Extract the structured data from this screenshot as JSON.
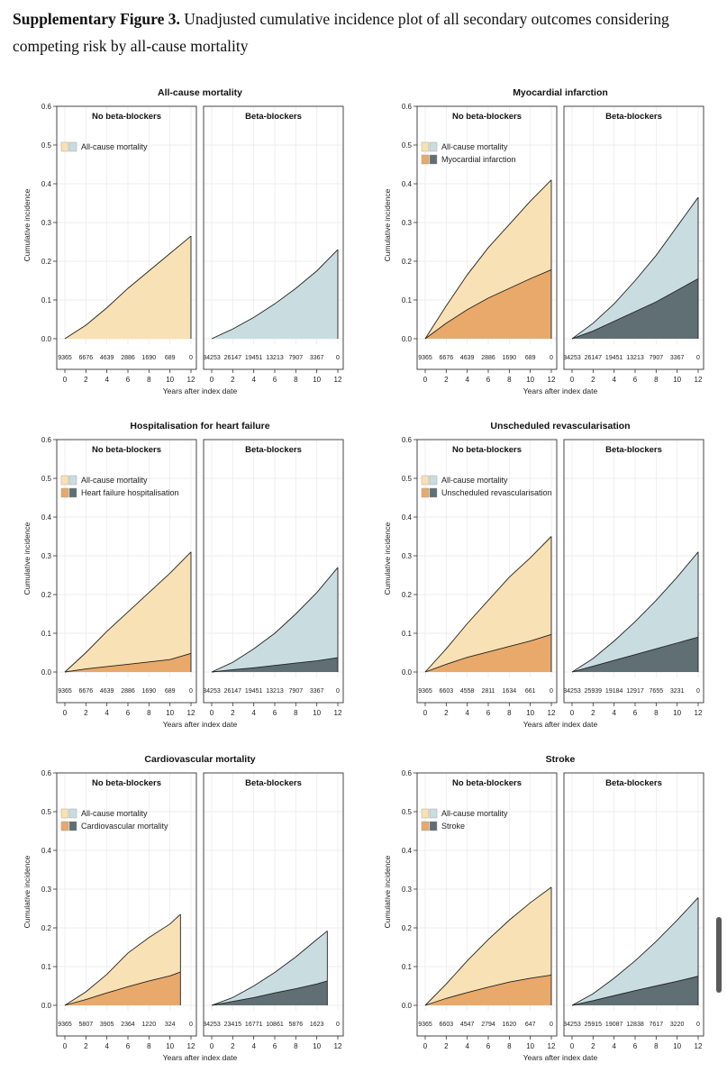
{
  "caption": {
    "label": "Supplementary Figure 3.",
    "text": " Unadjusted cumulative incidence plot of all secondary outcomes considering competing risk by all-cause mortality"
  },
  "colors": {
    "mortality_no": "#f8e1b4",
    "mortality_yes": "#c9dde1",
    "outcome_no": "#e8a96b",
    "outcome_yes": "#5f6f73",
    "line": "#222222",
    "grid": "#e8e8e8"
  },
  "shared": {
    "ylabel": "Cumulative incidence",
    "xlabel": "Years after index date",
    "group_no": "No beta-blockers",
    "group_yes": "Beta-blockers",
    "legend_mortality": "All-cause mortality",
    "y_ticks": [
      "0.0",
      "0.1",
      "0.2",
      "0.3",
      "0.4",
      "0.5",
      "0.6"
    ],
    "x_ticks": [
      "0",
      "2",
      "4",
      "6",
      "8",
      "10",
      "12"
    ]
  },
  "chart_data": [
    {
      "type": "area",
      "title": "All-cause mortality",
      "outcome": null,
      "ylim": [
        0,
        0.6
      ],
      "xlim": [
        0,
        12
      ],
      "no_bb": {
        "x": [
          0,
          2,
          4,
          6,
          8,
          10,
          12
        ],
        "total": [
          0,
          0.035,
          0.08,
          0.13,
          0.175,
          0.22,
          0.265
        ],
        "outcome": null,
        "risk": [
          "9365",
          "6676",
          "4639",
          "2886",
          "1690",
          "689",
          "0"
        ]
      },
      "bb": {
        "x": [
          0,
          2,
          4,
          6,
          8,
          10,
          12
        ],
        "total": [
          0,
          0.025,
          0.055,
          0.09,
          0.13,
          0.175,
          0.23
        ],
        "outcome": null,
        "risk": [
          "34253",
          "26147",
          "19451",
          "13213",
          "7907",
          "3367",
          "0"
        ]
      }
    },
    {
      "type": "area",
      "title": "Myocardial infarction",
      "outcome": "Myocardial infarction",
      "ylim": [
        0,
        0.6
      ],
      "xlim": [
        0,
        12
      ],
      "no_bb": {
        "x": [
          0,
          2,
          4,
          6,
          8,
          10,
          12
        ],
        "total": [
          0,
          0.085,
          0.165,
          0.235,
          0.295,
          0.355,
          0.41
        ],
        "outcome": [
          0,
          0.04,
          0.075,
          0.105,
          0.13,
          0.155,
          0.178
        ],
        "risk": [
          "9365",
          "6676",
          "4639",
          "2886",
          "1690",
          "689",
          "0"
        ]
      },
      "bb": {
        "x": [
          0,
          2,
          4,
          6,
          8,
          10,
          12
        ],
        "total": [
          0,
          0.04,
          0.09,
          0.15,
          0.215,
          0.29,
          0.365
        ],
        "outcome": [
          0,
          0.02,
          0.045,
          0.07,
          0.095,
          0.125,
          0.155
        ],
        "risk": [
          "34253",
          "26147",
          "19451",
          "13213",
          "7907",
          "3367",
          "0"
        ]
      }
    },
    {
      "type": "area",
      "title": "Hospitalisation for heart failure",
      "outcome": "Heart failure hospitalisation",
      "ylim": [
        0,
        0.6
      ],
      "xlim": [
        0,
        12
      ],
      "no_bb": {
        "x": [
          0,
          2,
          4,
          6,
          8,
          10,
          12
        ],
        "total": [
          0,
          0.05,
          0.105,
          0.155,
          0.205,
          0.255,
          0.31
        ],
        "outcome": [
          0,
          0.008,
          0.014,
          0.02,
          0.026,
          0.032,
          0.048
        ],
        "risk": [
          "9365",
          "6676",
          "4639",
          "2886",
          "1690",
          "689",
          "0"
        ]
      },
      "bb": {
        "x": [
          0,
          2,
          4,
          6,
          8,
          10,
          12
        ],
        "total": [
          0,
          0.025,
          0.06,
          0.1,
          0.15,
          0.205,
          0.27
        ],
        "outcome": [
          0,
          0.006,
          0.011,
          0.017,
          0.023,
          0.029,
          0.037
        ],
        "risk": [
          "34253",
          "26147",
          "19451",
          "13213",
          "7907",
          "3367",
          "0"
        ]
      }
    },
    {
      "type": "area",
      "title": "Unscheduled revascularisation",
      "outcome": "Unscheduled revascularisation",
      "ylim": [
        0,
        0.6
      ],
      "xlim": [
        0,
        12
      ],
      "no_bb": {
        "x": [
          0,
          2,
          4,
          6,
          8,
          10,
          12
        ],
        "total": [
          0,
          0.06,
          0.125,
          0.185,
          0.245,
          0.295,
          0.35
        ],
        "outcome": [
          0,
          0.02,
          0.038,
          0.052,
          0.066,
          0.08,
          0.097
        ],
        "risk": [
          "9365",
          "6603",
          "4558",
          "2811",
          "1634",
          "661",
          "0"
        ]
      },
      "bb": {
        "x": [
          0,
          2,
          4,
          6,
          8,
          10,
          12
        ],
        "total": [
          0,
          0.035,
          0.08,
          0.13,
          0.185,
          0.245,
          0.31
        ],
        "outcome": [
          0,
          0.015,
          0.03,
          0.045,
          0.06,
          0.075,
          0.09
        ],
        "risk": [
          "34253",
          "25939",
          "19184",
          "12917",
          "7655",
          "3231",
          "0"
        ]
      }
    },
    {
      "type": "area",
      "title": "Cardiovascular mortality",
      "outcome": "Cardiovascular mortality",
      "ylim": [
        0,
        0.6
      ],
      "xlim": [
        0,
        12
      ],
      "no_bb": {
        "x": [
          0,
          2,
          4,
          6,
          8,
          10,
          11
        ],
        "total": [
          0,
          0.035,
          0.08,
          0.135,
          0.175,
          0.21,
          0.235
        ],
        "outcome": [
          0,
          0.015,
          0.032,
          0.048,
          0.063,
          0.076,
          0.086
        ],
        "risk": [
          "9365",
          "5807",
          "3905",
          "2364",
          "1220",
          "324",
          "0"
        ]
      },
      "bb": {
        "x": [
          0,
          2,
          4,
          6,
          8,
          10,
          11
        ],
        "total": [
          0,
          0.02,
          0.05,
          0.085,
          0.125,
          0.17,
          0.192
        ],
        "outcome": [
          0,
          0.01,
          0.02,
          0.032,
          0.043,
          0.055,
          0.063
        ],
        "risk": [
          "34253",
          "23415",
          "16771",
          "10861",
          "5876",
          "1623",
          "0"
        ]
      }
    },
    {
      "type": "area",
      "title": "Stroke",
      "outcome": "Stroke",
      "ylim": [
        0,
        0.6
      ],
      "xlim": [
        0,
        12
      ],
      "no_bb": {
        "x": [
          0,
          2,
          4,
          6,
          8,
          10,
          12
        ],
        "total": [
          0,
          0.055,
          0.115,
          0.17,
          0.22,
          0.265,
          0.305
        ],
        "outcome": [
          0,
          0.018,
          0.033,
          0.047,
          0.06,
          0.07,
          0.078
        ],
        "risk": [
          "9365",
          "6603",
          "4547",
          "2794",
          "1620",
          "647",
          "0"
        ]
      },
      "bb": {
        "x": [
          0,
          2,
          4,
          6,
          8,
          10,
          12
        ],
        "total": [
          0,
          0.03,
          0.07,
          0.115,
          0.165,
          0.22,
          0.278
        ],
        "outcome": [
          0,
          0.012,
          0.025,
          0.038,
          0.05,
          0.062,
          0.075
        ],
        "risk": [
          "34253",
          "25915",
          "19087",
          "12838",
          "7617",
          "3220",
          "0"
        ]
      }
    }
  ]
}
